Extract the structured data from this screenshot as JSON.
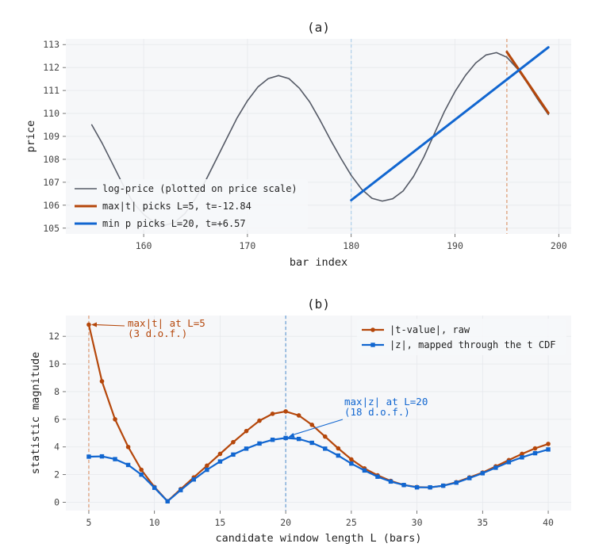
{
  "chart_data": [
    {
      "type": "line",
      "title": "(a)",
      "xlabel": "bar index",
      "ylabel": "price",
      "xlim": [
        152.5,
        201.2
      ],
      "ylim": [
        104.75,
        113.25
      ],
      "xticks": [
        160,
        170,
        180,
        190,
        200
      ],
      "yticks": [
        105,
        106,
        107,
        108,
        109,
        110,
        111,
        112,
        113
      ],
      "grid": true,
      "legend_position": "lower-left",
      "series": [
        {
          "name": "log-price (plotted on price scale)",
          "color": "#555a66",
          "x": [
            155,
            156,
            157,
            158,
            159,
            160,
            161,
            162,
            163,
            164,
            165,
            166,
            167,
            168,
            169,
            170,
            171,
            172,
            173,
            174,
            175,
            176,
            177,
            178,
            179,
            180,
            181,
            182,
            183,
            184,
            185,
            186,
            187,
            188,
            189,
            190,
            191,
            192,
            193,
            194,
            195,
            196,
            197,
            198,
            199
          ],
          "y": [
            109.5,
            108.7,
            107.8,
            106.9,
            106.1,
            105.6,
            105.25,
            105.12,
            105.25,
            105.65,
            106.3,
            107.1,
            108.0,
            108.9,
            109.8,
            110.55,
            111.15,
            111.52,
            111.65,
            111.52,
            111.1,
            110.5,
            109.7,
            108.85,
            108.05,
            107.3,
            106.7,
            106.3,
            106.18,
            106.28,
            106.62,
            107.25,
            108.1,
            109.1,
            110.1,
            110.95,
            111.65,
            112.2,
            112.55,
            112.65,
            112.45,
            111.95,
            111.3,
            110.6,
            109.95
          ]
        },
        {
          "name": "max|t| picks L=5, t=-12.84",
          "color": "#b5470b",
          "x": [
            195,
            199
          ],
          "y": [
            112.68,
            110.02
          ]
        },
        {
          "name": "min p picks L=20, t=+6.57",
          "color": "#1166d0",
          "x": [
            180,
            199
          ],
          "y": [
            106.22,
            112.88
          ]
        }
      ],
      "vlines": [
        {
          "x": 180,
          "color": "#a9cdea"
        },
        {
          "x": 195,
          "color": "#d98f62"
        }
      ]
    },
    {
      "type": "line",
      "title": "(b)",
      "xlabel": "candidate window length L (bars)",
      "ylabel": "statistic magnitude",
      "xlim": [
        3.25,
        41.75
      ],
      "ylim": [
        -0.6,
        13.5
      ],
      "xticks": [
        5,
        10,
        15,
        20,
        25,
        30,
        35,
        40
      ],
      "yticks": [
        0,
        2,
        4,
        6,
        8,
        10,
        12
      ],
      "grid": true,
      "legend_position": "top-right",
      "series": [
        {
          "name": "|t-value|, raw",
          "color": "#b5470b",
          "marker": "circle",
          "x": [
            5,
            6,
            7,
            8,
            9,
            10,
            11,
            12,
            13,
            14,
            15,
            16,
            17,
            18,
            19,
            20,
            21,
            22,
            23,
            24,
            25,
            26,
            27,
            28,
            29,
            30,
            31,
            32,
            33,
            34,
            35,
            36,
            37,
            38,
            39,
            40
          ],
          "y": [
            12.84,
            8.75,
            6.0,
            4.0,
            2.35,
            1.1,
            0.08,
            0.95,
            1.8,
            2.65,
            3.5,
            4.35,
            5.15,
            5.9,
            6.4,
            6.57,
            6.28,
            5.6,
            4.75,
            3.9,
            3.1,
            2.45,
            1.95,
            1.55,
            1.25,
            1.1,
            1.08,
            1.2,
            1.45,
            1.8,
            2.15,
            2.6,
            3.05,
            3.5,
            3.9,
            4.22
          ]
        },
        {
          "name": "|z|, mapped through the t CDF",
          "color": "#1166d0",
          "marker": "square",
          "x": [
            5,
            6,
            7,
            8,
            9,
            10,
            11,
            12,
            13,
            14,
            15,
            16,
            17,
            18,
            19,
            20,
            21,
            22,
            23,
            24,
            25,
            26,
            27,
            28,
            29,
            30,
            31,
            32,
            33,
            34,
            35,
            36,
            37,
            38,
            39,
            40
          ],
          "y": [
            3.3,
            3.32,
            3.12,
            2.7,
            2.0,
            1.05,
            0.07,
            0.88,
            1.65,
            2.35,
            2.95,
            3.45,
            3.88,
            4.25,
            4.52,
            4.65,
            4.58,
            4.3,
            3.88,
            3.38,
            2.8,
            2.3,
            1.85,
            1.5,
            1.25,
            1.08,
            1.08,
            1.2,
            1.42,
            1.75,
            2.1,
            2.5,
            2.9,
            3.25,
            3.55,
            3.82
          ]
        }
      ],
      "vlines": [
        {
          "x": 5,
          "color": "#d98f62"
        },
        {
          "x": 20,
          "color": "#5a93cf"
        }
      ],
      "annotations": [
        {
          "text": [
            "max|t| at L=5",
            "(3 d.o.f.)"
          ],
          "target": [
            5,
            12.84
          ],
          "color": "#b5470b"
        },
        {
          "text": [
            "max|z| at L=20",
            "(18 d.o.f.)"
          ],
          "target": [
            20,
            4.65
          ],
          "color": "#1166d0"
        }
      ]
    }
  ]
}
